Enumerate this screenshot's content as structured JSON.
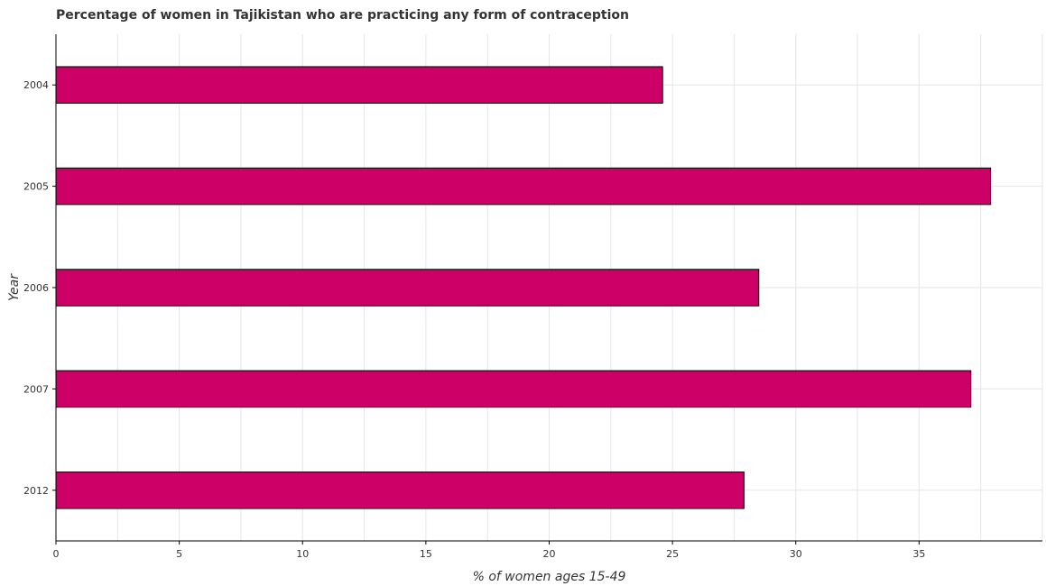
{
  "chart_data": {
    "type": "bar",
    "orientation": "horizontal",
    "title": "Percentage of women in Tajikistan who are practicing any form of contraception",
    "xlabel": "% of women ages 15-49",
    "ylabel": "Year",
    "categories": [
      "2004",
      "2005",
      "2006",
      "2007",
      "2012"
    ],
    "values": [
      24.6,
      37.9,
      28.5,
      37.1,
      27.9
    ],
    "xlim": [
      0,
      40
    ],
    "xticks": [
      0,
      5,
      10,
      15,
      20,
      25,
      30,
      35
    ],
    "xtick_labels": [
      "0",
      "5",
      "10",
      "15",
      "20",
      "25",
      "30",
      "35"
    ],
    "grid": true,
    "bar_color": "#cc0066",
    "bar_edge_color": "#000000"
  }
}
